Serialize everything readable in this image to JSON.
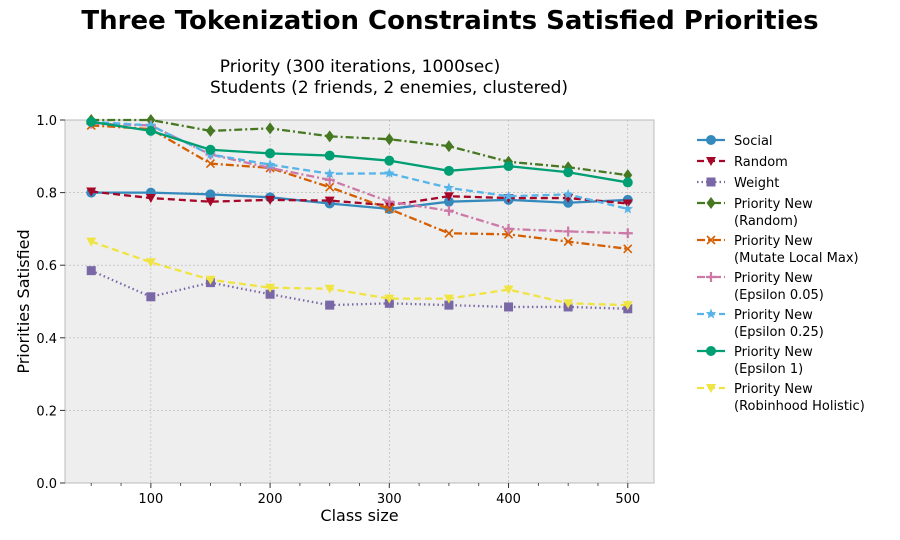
{
  "title": "Three Tokenization Constraints Satisfied Priorities",
  "subtitle_line1": "Priority (300 iterations, 1000sec)",
  "subtitle_line2": "Students (2 friends, 2 enemies, clustered)",
  "chart_data": {
    "type": "line",
    "xlabel": "Class size",
    "ylabel": "Priorities Satisfied",
    "xlim": [
      28,
      522
    ],
    "ylim": [
      0,
      1.0
    ],
    "xticks": [
      100,
      200,
      300,
      400,
      500
    ],
    "yticks": [
      0.0,
      0.2,
      0.4,
      0.6,
      0.8,
      1.0
    ],
    "grid": true,
    "legend_position": "outside-right",
    "x": [
      50,
      100,
      150,
      200,
      250,
      300,
      350,
      400,
      450,
      500
    ],
    "series": [
      {
        "name": "Social",
        "color": "#348abd",
        "marker": "circle",
        "dash": "solid",
        "values": [
          0.8,
          0.8,
          0.795,
          0.787,
          0.77,
          0.755,
          0.775,
          0.78,
          0.772,
          0.78
        ]
      },
      {
        "name": "Random",
        "color": "#a60628",
        "marker": "triangle-down",
        "dash": "dashed",
        "values": [
          0.803,
          0.785,
          0.775,
          0.78,
          0.778,
          0.765,
          0.79,
          0.785,
          0.785,
          0.77
        ]
      },
      {
        "name": "Weight",
        "color": "#7a68a6",
        "marker": "square",
        "dash": "dotted",
        "values": [
          0.585,
          0.513,
          0.552,
          0.52,
          0.49,
          0.495,
          0.49,
          0.485,
          0.485,
          0.48
        ]
      },
      {
        "name": "Priority New\n(Random)",
        "color": "#467821",
        "marker": "diamond",
        "dash": "dashdot",
        "values": [
          1.0,
          1.0,
          0.97,
          0.977,
          0.955,
          0.947,
          0.928,
          0.885,
          0.87,
          0.848
        ]
      },
      {
        "name": "Priority New\n(Mutate Local Max)",
        "color": "#d55e00",
        "marker": "x",
        "dash": "dashdot",
        "values": [
          0.985,
          0.975,
          0.88,
          0.868,
          0.815,
          0.755,
          0.688,
          0.685,
          0.665,
          0.645
        ]
      },
      {
        "name": "Priority New\n(Epsilon 0.05)",
        "color": "#cc79a7",
        "marker": "plus",
        "dash": "dashdot",
        "values": [
          0.99,
          0.985,
          0.905,
          0.868,
          0.835,
          0.775,
          0.75,
          0.7,
          0.693,
          0.688
        ]
      },
      {
        "name": "Priority New\n(Epsilon 0.25)",
        "color": "#56b4e9",
        "marker": "star",
        "dash": "dashed",
        "values": [
          0.995,
          0.985,
          0.905,
          0.877,
          0.852,
          0.853,
          0.813,
          0.79,
          0.795,
          0.755
        ]
      },
      {
        "name": "Priority New\n(Epsilon 1)",
        "color": "#009e73",
        "marker": "circle",
        "dash": "solid",
        "values": [
          0.995,
          0.97,
          0.918,
          0.908,
          0.902,
          0.888,
          0.86,
          0.873,
          0.856,
          0.828
        ]
      },
      {
        "name": "Priority New\n(Robinhood Holistic)",
        "color": "#f0e442",
        "marker": "triangle-down",
        "dash": "dashed",
        "values": [
          0.665,
          0.608,
          0.56,
          0.538,
          0.535,
          0.508,
          0.508,
          0.533,
          0.495,
          0.49
        ]
      }
    ]
  }
}
